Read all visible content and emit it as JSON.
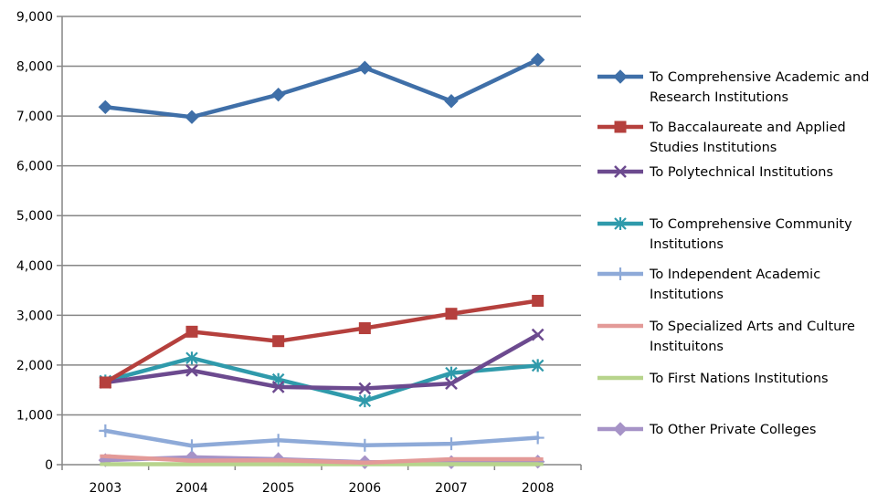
{
  "chart_data": {
    "type": "line",
    "title": "",
    "xlabel": "",
    "ylabel": "",
    "categories": [
      "2003",
      "2004",
      "2005",
      "2006",
      "2007",
      "2008"
    ],
    "ylim": [
      0,
      9000
    ],
    "yticks": [
      0,
      1000,
      2000,
      3000,
      4000,
      5000,
      6000,
      7000,
      8000,
      9000
    ],
    "ytick_labels": [
      "0",
      "1,000",
      "2,000",
      "3,000",
      "4,000",
      "5,000",
      "6,000",
      "7,000",
      "8,000",
      "9,000"
    ],
    "grid": true,
    "legend_position": "right",
    "series": [
      {
        "name": "To Comprehensive Academic and Research Institutions",
        "legend_lines": [
          "To Comprehensive Academic and",
          "Research Institutions"
        ],
        "color": "#3f6fa8",
        "marker": "diamond",
        "values": [
          7180,
          6980,
          7430,
          7970,
          7300,
          8130
        ]
      },
      {
        "name": "To Baccalaureate and Applied Studies Institutions",
        "legend_lines": [
          "To Baccalaureate and Applied",
          "Studies Institutions"
        ],
        "color": "#b5403d",
        "marker": "square",
        "values": [
          1650,
          2670,
          2480,
          2740,
          3030,
          3290
        ]
      },
      {
        "name": "To Polytechnical Institutions",
        "legend_lines": [
          "To Polytechnical Institutions"
        ],
        "color": "#6c4a8f",
        "marker": "x",
        "values": [
          1650,
          1890,
          1560,
          1530,
          1630,
          2610
        ]
      },
      {
        "name": "To Comprehensive Community Institutions",
        "legend_lines": [
          "To Comprehensive Community",
          "Institutions"
        ],
        "color": "#2f9aab",
        "marker": "star",
        "values": [
          1680,
          2140,
          1710,
          1280,
          1840,
          1990
        ]
      },
      {
        "name": "To Independent Academic Institutions",
        "legend_lines": [
          "To Independent Academic",
          "Institutions"
        ],
        "color": "#8eaad8",
        "marker": "plus",
        "values": [
          680,
          380,
          490,
          390,
          420,
          540
        ]
      },
      {
        "name": "To Specialized Arts and Culture Instituitons",
        "legend_lines": [
          "To Specialized Arts and Culture",
          "Instituitons"
        ],
        "color": "#e39a98",
        "marker": "dash",
        "values": [
          170,
          80,
          90,
          40,
          110,
          110
        ]
      },
      {
        "name": "To First Nations Institutions",
        "legend_lines": [
          "To First Nations Institutions"
        ],
        "color": "#b7d48c",
        "marker": "dash",
        "values": [
          10,
          10,
          10,
          10,
          10,
          10
        ]
      },
      {
        "name": "To Other Private Colleges",
        "legend_lines": [
          "To Other Private Colleges"
        ],
        "color": "#a693c7",
        "marker": "diamond",
        "values": [
          90,
          150,
          110,
          50,
          50,
          60
        ]
      }
    ]
  }
}
